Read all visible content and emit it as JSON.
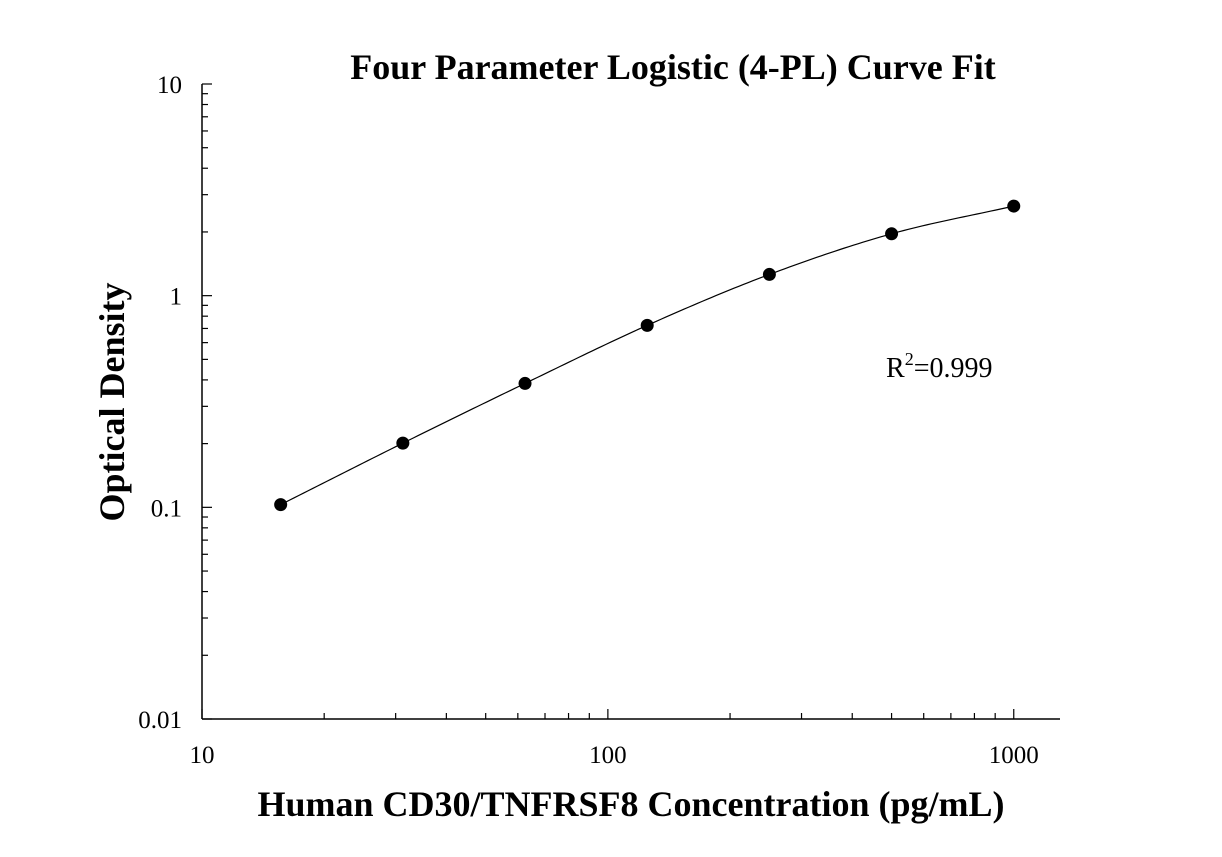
{
  "chart_data": {
    "type": "scatter",
    "title": "Four Parameter Logistic (4-PL) Curve Fit",
    "xlabel": "Human CD30/TNFRSF8 Concentration (pg/mL)",
    "ylabel": "Optical Density",
    "x_scale": "log",
    "y_scale": "log",
    "xlim": [
      10,
      1300
    ],
    "ylim": [
      0.01,
      10
    ],
    "x_ticks": [
      {
        "value": 10,
        "label": "10"
      },
      {
        "value": 100,
        "label": "100"
      },
      {
        "value": 1000,
        "label": "1000"
      }
    ],
    "y_ticks": [
      {
        "value": 0.01,
        "label": "0.01"
      },
      {
        "value": 0.1,
        "label": "0.1"
      },
      {
        "value": 1,
        "label": "1"
      },
      {
        "value": 10,
        "label": "10"
      }
    ],
    "grid": false,
    "series": [
      {
        "marker": "circle",
        "color": "#000000",
        "x": [
          15.625,
          31.25,
          62.5,
          125,
          250,
          500,
          1000
        ],
        "y": [
          0.103,
          0.201,
          0.385,
          0.724,
          1.26,
          1.96,
          2.65
        ]
      }
    ],
    "fit_curve": {
      "model": "4PL",
      "color": "#000000"
    },
    "annotation": {
      "base": "R",
      "superscript": "2",
      "value": "=0.999"
    }
  }
}
